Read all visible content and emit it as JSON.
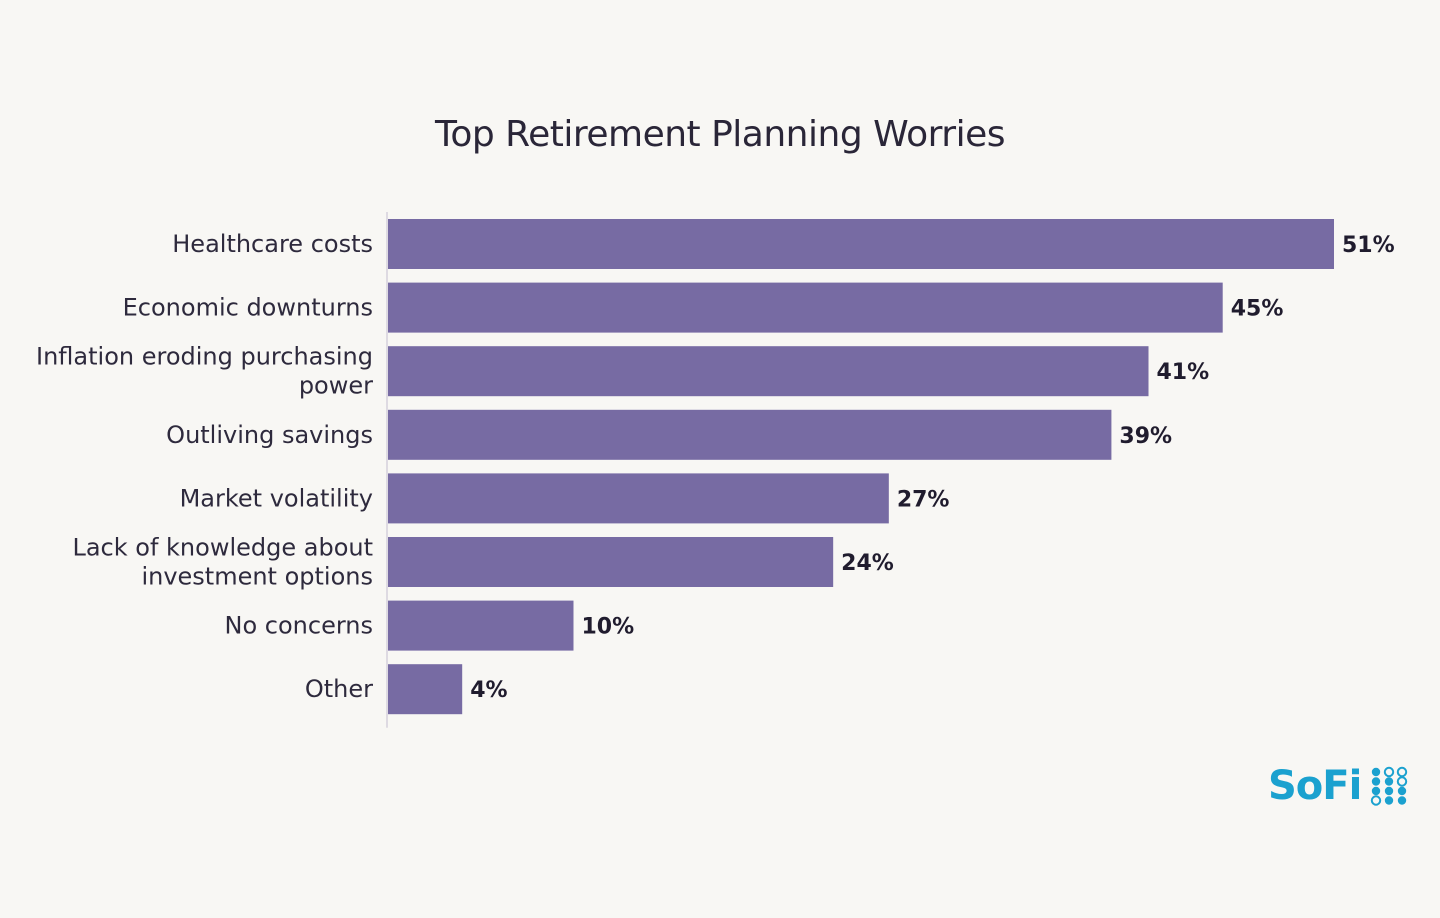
{
  "colors": {
    "bar": "#776ba3",
    "axis": "#d5d1dc",
    "background": "#f8f7f4",
    "brand": "#1ba1cf"
  },
  "logo": {
    "text": "SoFi"
  },
  "chart_data": {
    "type": "bar",
    "orientation": "horizontal",
    "title": "Top Retirement Planning Worries",
    "xlabel": "",
    "ylabel": "",
    "xlim": [
      0,
      51
    ],
    "grid": false,
    "categories": [
      "Healthcare costs",
      "Economic downturns",
      "Inflation eroding purchasing power",
      "Outliving savings",
      "Market volatility",
      "Lack of knowledge about investment options",
      "No concerns",
      "Other"
    ],
    "category_lines": [
      [
        "Healthcare costs"
      ],
      [
        "Economic downturns"
      ],
      [
        "Inflation eroding purchasing",
        "power"
      ],
      [
        "Outliving savings"
      ],
      [
        "Market volatility"
      ],
      [
        "Lack of knowledge about",
        "investment options"
      ],
      [
        "No concerns"
      ],
      [
        "Other"
      ]
    ],
    "values": [
      51,
      45,
      41,
      39,
      27,
      24,
      10,
      4
    ],
    "value_labels": [
      "51%",
      "45%",
      "41%",
      "39%",
      "27%",
      "24%",
      "10%",
      "4%"
    ]
  }
}
